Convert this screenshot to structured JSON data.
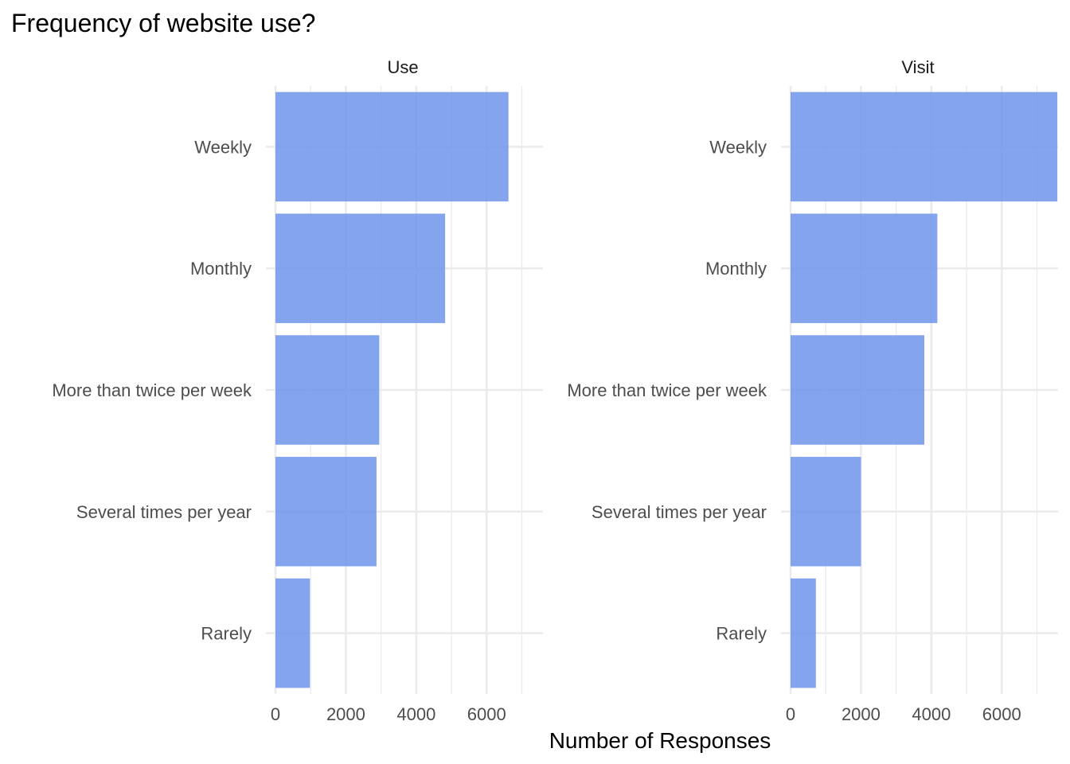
{
  "chart_data": {
    "type": "bar",
    "orientation": "horizontal",
    "title": "Frequency of website use?",
    "xlabel": "Number of Responses",
    "ylabel": "",
    "categories": [
      "Weekly",
      "Monthly",
      "More than twice per week",
      "Several times per year",
      "Rarely"
    ],
    "xlim": [
      0,
      7600
    ],
    "xticks": [
      0,
      2000,
      4000,
      6000
    ],
    "grid": true,
    "legend": "none",
    "bar_color": "#6E95EB",
    "panels": [
      {
        "name": "Use",
        "values": [
          6620,
          4820,
          2950,
          2870,
          980
        ]
      },
      {
        "name": "Visit",
        "values": [
          7580,
          4170,
          3800,
          2000,
          720
        ]
      }
    ]
  }
}
